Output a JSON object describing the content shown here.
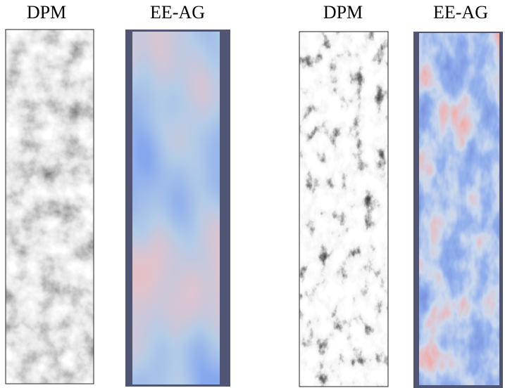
{
  "panels": [
    {
      "label": "DPM"
    },
    {
      "label": "EE-AG"
    },
    {
      "label": "DPM"
    },
    {
      "label": "EE-AG"
    }
  ]
}
